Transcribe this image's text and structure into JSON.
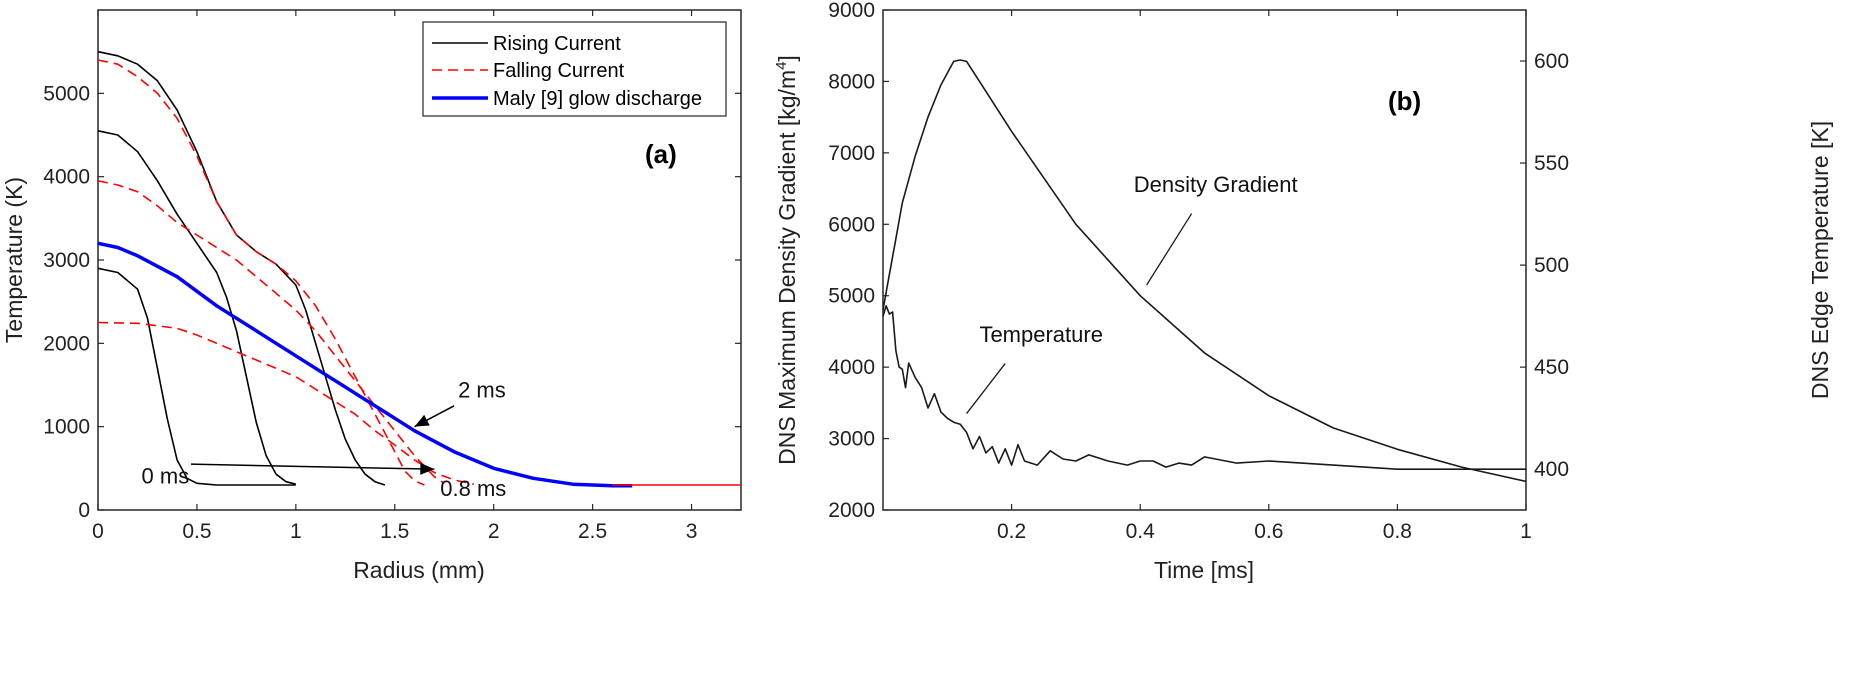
{
  "chart_data": [
    {
      "panel_label": "(a)",
      "type": "line",
      "xlabel": "Radius (mm)",
      "ylabel": "Temperature (K)",
      "xlim": [
        0,
        3.25
      ],
      "ylim": [
        0,
        6000
      ],
      "xticks": [
        0,
        0.5,
        1,
        1.5,
        2,
        2.5,
        3
      ],
      "yticks": [
        0,
        1000,
        2000,
        3000,
        4000,
        5000
      ],
      "xtick_labels": [
        "0",
        "0.5",
        "1",
        "1.5",
        "2",
        "2.5",
        "3"
      ],
      "ytick_labels": [
        "0",
        "1000",
        "2000",
        "3000",
        "4000",
        "5000"
      ],
      "grid": false,
      "legend": {
        "placement": "top-right",
        "entries": [
          {
            "label": "Rising Current",
            "color": "#000000",
            "style": "solid"
          },
          {
            "label": "Falling Current",
            "color": "#ff0000",
            "style": "dashed"
          },
          {
            "label": "Maly [9] glow discharge",
            "color": "#0000ff",
            "style": "solid-thick"
          }
        ]
      },
      "series": [
        {
          "legend_ref": 0,
          "x": [
            0,
            0.1,
            0.2,
            0.25,
            0.3,
            0.35,
            0.4,
            0.45,
            0.5,
            0.6,
            0.7,
            0.8,
            1.0
          ],
          "y": [
            2900,
            2850,
            2650,
            2300,
            1700,
            1100,
            600,
            380,
            320,
            300,
            300,
            300,
            300
          ]
        },
        {
          "legend_ref": 0,
          "x": [
            0,
            0.1,
            0.2,
            0.3,
            0.4,
            0.5,
            0.6,
            0.65,
            0.7,
            0.75,
            0.8,
            0.85,
            0.9,
            0.95,
            1.0
          ],
          "y": [
            4550,
            4500,
            4300,
            3950,
            3550,
            3200,
            2850,
            2550,
            2150,
            1600,
            1050,
            650,
            430,
            340,
            310
          ]
        },
        {
          "legend_ref": 0,
          "x": [
            0,
            0.1,
            0.2,
            0.3,
            0.4,
            0.5,
            0.6,
            0.7,
            0.8,
            0.9,
            1.0,
            1.05,
            1.1,
            1.15,
            1.2,
            1.25,
            1.3,
            1.35,
            1.4,
            1.45
          ],
          "y": [
            5500,
            5450,
            5350,
            5150,
            4800,
            4300,
            3700,
            3300,
            3100,
            2950,
            2700,
            2400,
            2000,
            1600,
            1200,
            850,
            600,
            430,
            340,
            300
          ]
        },
        {
          "legend_ref": 1,
          "x": [
            0,
            0.1,
            0.2,
            0.3,
            0.4,
            0.5,
            0.6,
            0.7,
            0.8,
            0.9,
            1.0,
            1.1,
            1.2,
            1.3,
            1.4,
            1.5,
            1.55,
            1.6,
            1.65
          ],
          "y": [
            5400,
            5350,
            5200,
            5000,
            4700,
            4250,
            3700,
            3300,
            3100,
            2950,
            2750,
            2450,
            2050,
            1600,
            1150,
            700,
            470,
            350,
            300
          ]
        },
        {
          "legend_ref": 1,
          "x": [
            0,
            0.1,
            0.2,
            0.3,
            0.4,
            0.5,
            0.6,
            0.7,
            0.8,
            0.9,
            1.0,
            1.1,
            1.2,
            1.3,
            1.4,
            1.5,
            1.6,
            1.7,
            1.75
          ],
          "y": [
            3950,
            3900,
            3820,
            3650,
            3450,
            3300,
            3150,
            3000,
            2800,
            2600,
            2400,
            2150,
            1850,
            1550,
            1250,
            950,
            650,
            400,
            320
          ]
        },
        {
          "legend_ref": 1,
          "x": [
            0,
            0.2,
            0.4,
            0.5,
            0.6,
            0.7,
            0.8,
            0.9,
            1.0,
            1.1,
            1.2,
            1.3,
            1.4,
            1.5,
            1.6,
            1.7,
            1.8,
            1.9
          ],
          "y": [
            2250,
            2240,
            2180,
            2100,
            2000,
            1900,
            1800,
            1700,
            1600,
            1450,
            1300,
            1150,
            950,
            780,
            600,
            450,
            360,
            310
          ]
        },
        {
          "legend_ref": 2,
          "x": [
            0,
            0.1,
            0.2,
            0.4,
            0.6,
            0.8,
            1.0,
            1.2,
            1.4,
            1.6,
            1.8,
            2.0,
            2.2,
            2.4,
            2.5,
            2.6,
            2.7
          ],
          "y": [
            3200,
            3150,
            3050,
            2800,
            2450,
            2150,
            1850,
            1550,
            1250,
            950,
            700,
            500,
            380,
            310,
            300,
            290,
            290
          ]
        },
        {
          "legend_ref": null,
          "color": "#ff0000",
          "style": "solid-thin",
          "x": [
            2.6,
            3.25
          ],
          "y": [
            300,
            300
          ]
        }
      ],
      "annotations": [
        {
          "text": "0 ms",
          "x": 0.22,
          "y": 320
        },
        {
          "text": "0.8 ms",
          "x": 1.73,
          "y": 170
        },
        {
          "text": "2 ms",
          "x": 1.82,
          "y": 1350
        }
      ],
      "arrows": [
        {
          "from": [
            0.47,
            550
          ],
          "to": [
            1.7,
            490
          ]
        },
        {
          "from": [
            1.8,
            1250
          ],
          "to": [
            1.6,
            1000
          ]
        }
      ]
    },
    {
      "panel_label": "(b)",
      "type": "line",
      "xlabel": "Time [ms]",
      "ylabel": "DNS Maximum Density Gradient  [kg/m",
      "ylabel_sup": "4",
      "ylabel_close": "]",
      "y2label": "DNS Edge Temperature  [K]",
      "xlim": [
        0,
        1
      ],
      "ylim": [
        2000,
        9000
      ],
      "y2lim": [
        380,
        625
      ],
      "xticks": [
        0.2,
        0.4,
        0.6,
        0.8,
        1
      ],
      "xtick_labels": [
        "0.2",
        "0.4",
        "0.6",
        "0.8",
        "1"
      ],
      "yticks": [
        2000,
        3000,
        4000,
        5000,
        6000,
        7000,
        8000,
        9000
      ],
      "ytick_labels": [
        "2000",
        "3000",
        "4000",
        "5000",
        "6000",
        "7000",
        "8000",
        "9000"
      ],
      "y2ticks": [
        400,
        450,
        500,
        550,
        600
      ],
      "y2tick_labels": [
        "400",
        "450",
        "500",
        "550",
        "600"
      ],
      "grid": false,
      "series": [
        {
          "axis": "left",
          "x": [
            0,
            0.01,
            0.02,
            0.03,
            0.05,
            0.07,
            0.09,
            0.11,
            0.12,
            0.13,
            0.15,
            0.2,
            0.3,
            0.4,
            0.5,
            0.6,
            0.7,
            0.8,
            0.9,
            1.0
          ],
          "y": [
            4800,
            5300,
            5800,
            6300,
            6950,
            7500,
            7950,
            8280,
            8300,
            8280,
            8000,
            7300,
            6000,
            5000,
            4200,
            3600,
            3150,
            2850,
            2600,
            2400
          ]
        },
        {
          "axis": "right",
          "x": [
            0,
            0.005,
            0.01,
            0.015,
            0.02,
            0.025,
            0.03,
            0.035,
            0.04,
            0.05,
            0.06,
            0.07,
            0.08,
            0.09,
            0.1,
            0.11,
            0.12,
            0.13,
            0.14,
            0.15,
            0.16,
            0.17,
            0.18,
            0.19,
            0.2,
            0.21,
            0.22,
            0.24,
            0.26,
            0.28,
            0.3,
            0.32,
            0.35,
            0.38,
            0.4,
            0.42,
            0.44,
            0.46,
            0.48,
            0.5,
            0.55,
            0.6,
            0.7,
            0.8,
            0.9,
            1.0
          ],
          "y": [
            475,
            480,
            476,
            477,
            458,
            450,
            449,
            440,
            452,
            445,
            440,
            430,
            437,
            428,
            425,
            423,
            422,
            418,
            410,
            416,
            408,
            411,
            403,
            410,
            402,
            412,
            404,
            402,
            409,
            405,
            404,
            407,
            404,
            402,
            404,
            404,
            401,
            403,
            402,
            406,
            403,
            404,
            402,
            400,
            400,
            400
          ]
        }
      ],
      "annotations": [
        {
          "text": "Density Gradient",
          "x": 0.39,
          "y": 6450
        },
        {
          "text": "Temperature",
          "x": 0.15,
          "y": 4350
        }
      ],
      "leaders": [
        {
          "from": [
            0.48,
            6150
          ],
          "to": [
            0.41,
            5150
          ]
        },
        {
          "from": [
            0.19,
            4050
          ],
          "to": [
            0.13,
            3350
          ]
        }
      ]
    }
  ]
}
